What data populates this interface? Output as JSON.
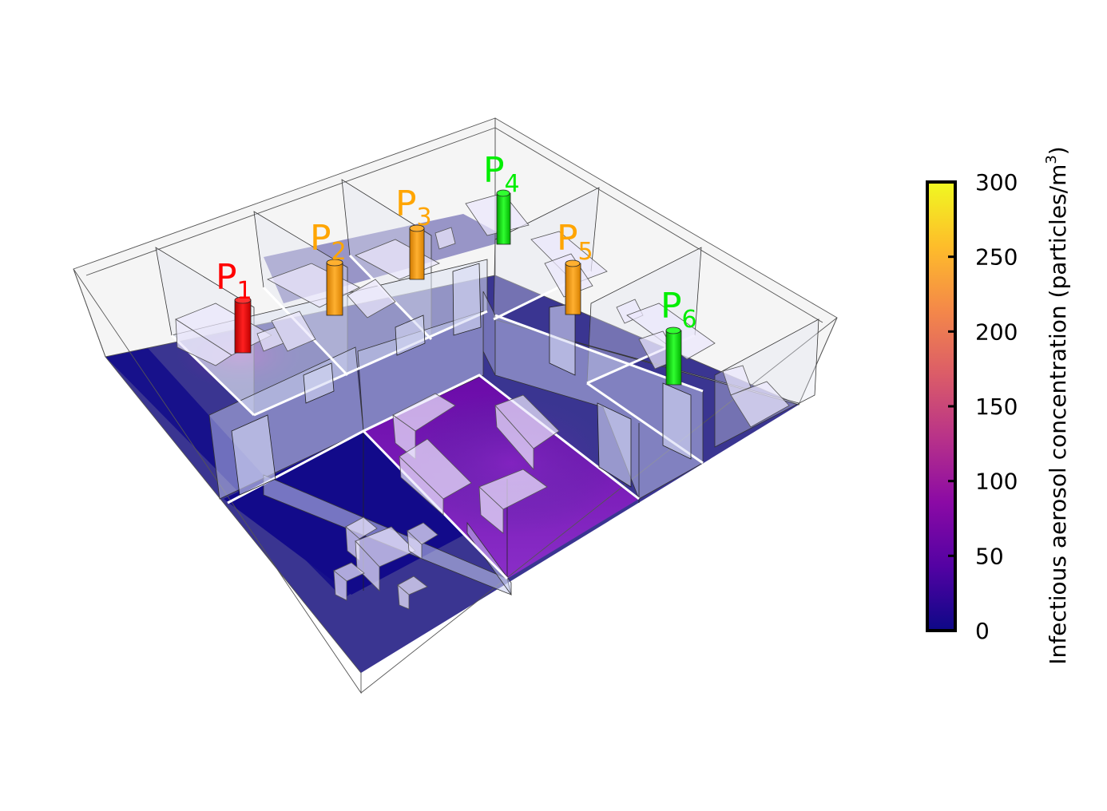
{
  "colorbar": {
    "label_main": "Infectious aerosol concentration (particles/m",
    "label_sup": "3",
    "label_close": ")",
    "ticks": [
      "0",
      "50",
      "100",
      "150",
      "200",
      "250",
      "300"
    ],
    "min": 0,
    "max": 300,
    "colormap": "plasma",
    "stops": [
      "#0d0887",
      "#5302a3",
      "#8b0aa5",
      "#b83289",
      "#db5c68",
      "#f48849",
      "#febd2a",
      "#f0f921"
    ]
  },
  "persons": [
    {
      "label": "P",
      "sub": "1",
      "color": "#ff0000"
    },
    {
      "label": "P",
      "sub": "2",
      "color": "#ffa500"
    },
    {
      "label": "P",
      "sub": "3",
      "color": "#ffa500"
    },
    {
      "label": "P",
      "sub": "4",
      "color": "#00ee00"
    },
    {
      "label": "P",
      "sub": "5",
      "color": "#ffa500"
    },
    {
      "label": "P",
      "sub": "6",
      "color": "#00ee00"
    }
  ],
  "colors": {
    "floor_base": "#3a3591",
    "floor_dark": "#120a8a",
    "wall_fill": "rgba(225,228,240,0.35)",
    "furniture_fill": "rgba(235,232,252,0.72)"
  }
}
